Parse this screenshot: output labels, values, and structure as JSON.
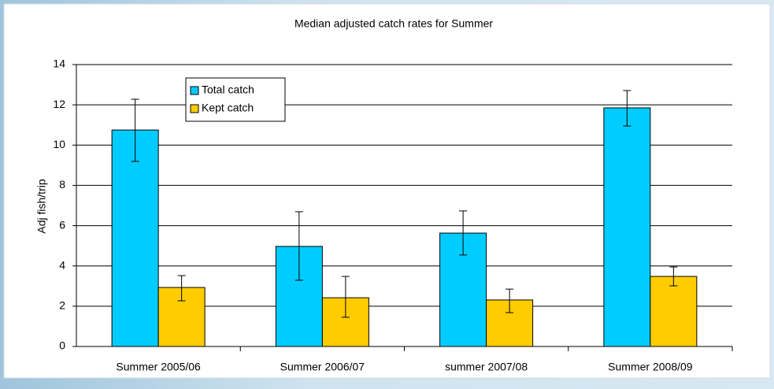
{
  "chart_data": {
    "type": "bar",
    "title": "Median adjusted catch rates for Summer",
    "y_label": "Adj fish/trip",
    "categories": [
      "Summer 2005/06",
      "Summer 2006/07",
      "summer 2007/08",
      "Summer 2008/09"
    ],
    "series": [
      {
        "name": "Total catch",
        "color": "#00ccff",
        "values": [
          10.75,
          4.97,
          5.63,
          11.85
        ],
        "lower": [
          9.19,
          3.29,
          4.54,
          10.95
        ],
        "upper": [
          12.28,
          6.69,
          6.73,
          12.71
        ]
      },
      {
        "name": "Kept catch",
        "color": "#ffcc00",
        "values": [
          2.93,
          2.42,
          2.31,
          3.48
        ],
        "lower": [
          2.27,
          1.45,
          1.68,
          3.01
        ],
        "upper": [
          3.52,
          3.48,
          2.85,
          3.95
        ]
      }
    ],
    "ylim": [
      0,
      14
    ],
    "yticks": [
      0,
      2,
      4,
      6,
      8,
      10,
      12,
      14
    ],
    "grid": true,
    "legend": "upper left"
  }
}
